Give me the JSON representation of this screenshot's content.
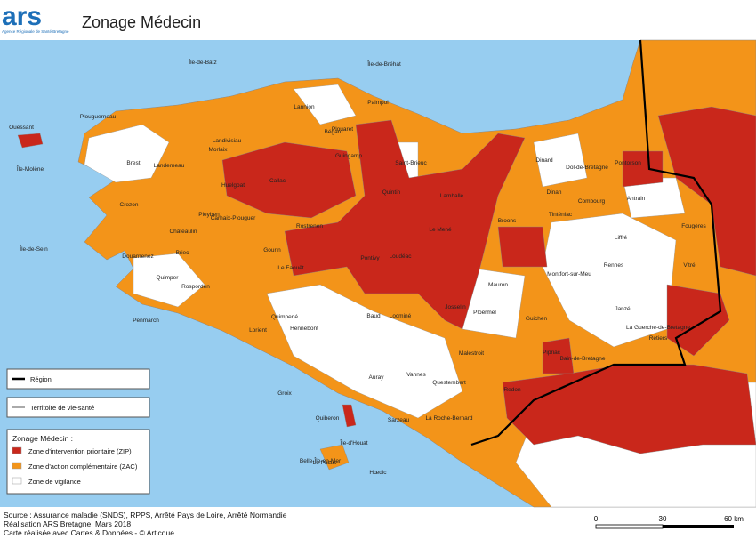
{
  "header": {
    "logo": "ars",
    "logo_subtitle": "Agence Régionale de Santé Bretagne",
    "title": "Zonage Médecin"
  },
  "legend": {
    "region": "Région",
    "territory": "Territoire de vie-santé",
    "title": "Zonage Médecin :",
    "items": [
      {
        "label": "Zone d'intervention prioritaire (ZIP)",
        "color": "#c9271b"
      },
      {
        "label": "Zone d'action complémentaire (ZAC)",
        "color": "#f39419"
      },
      {
        "label": "Zone de vigilance",
        "color": "#ffffff"
      }
    ]
  },
  "places": [
    "Île-de-Batz",
    "Île-de-Bréhat",
    "Ouessant",
    "Île-Molène",
    "Île-de-Sein",
    "Lannion",
    "Paimpol",
    "Plouaret",
    "Bégard",
    "Guingamp",
    "Morlaix",
    "Landivisiau",
    "Huelgoat",
    "Callac",
    "Saint-Brieuc",
    "Lamballe",
    "Dinan",
    "Dinard",
    "Dol-de-Bretagne",
    "Pontorson",
    "Combourg",
    "Antrain",
    "Fougères",
    "Vitré",
    "Liffré",
    "Rennes",
    "Janzé",
    "Retiers",
    "Crozon",
    "Châteaulin",
    "Pleyben",
    "Carhaix-Plouguer",
    "Rostrenen",
    "Loudéac",
    "Pontivy",
    "Le Mené",
    "Mauron",
    "Ploërmel",
    "Josselin",
    "Locminé",
    "Baud",
    "Quimper",
    "Briec",
    "Gourin",
    "Le Faouët",
    "Quimperlé",
    "Rosporden",
    "Douarnenez",
    "Penmarch",
    "Hennebont",
    "Lorient",
    "Groix",
    "Quiberon",
    "Auray",
    "Vannes",
    "Questembert",
    "Malestroit",
    "Guichen",
    "Redon",
    "Pipriac",
    "La Roche-Bernard",
    "Sarzeau",
    "Belle-Île-en-Mer",
    "Île-d'Houat",
    "Hœdic",
    "Le Palais",
    "Plouguerneau",
    "Brest",
    "Landerneau",
    "Bain-de-Bretagne",
    "La Guerche-de-Bretagne",
    "Montfort-sur-Meu",
    "Broons",
    "Tinténiac",
    "Quintin"
  ],
  "source": [
    "Source : Assurance maladie (SNDS), RPPS, Arrêté Pays de Loire, Arrêté Normandie",
    "Réalisation ARS Bretagne, Mars 2018",
    "Carte réalisée avec Cartes & Données - © Articque"
  ],
  "scale": {
    "labels": [
      "0",
      "30",
      "60 km"
    ]
  }
}
